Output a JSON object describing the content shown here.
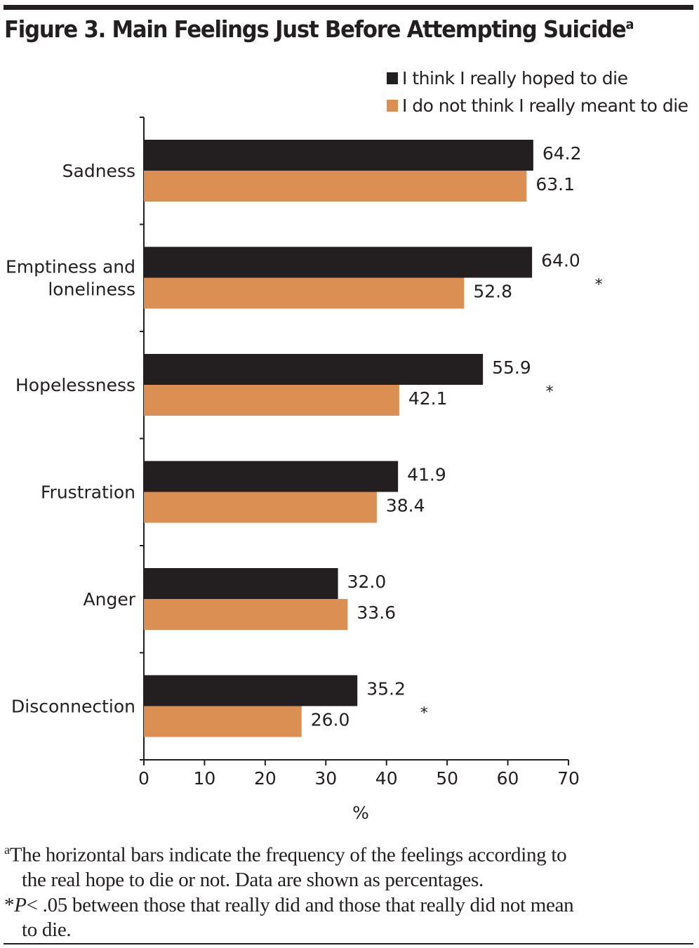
{
  "title": "Figure 3. Main Feelings Just Before Attempting Suicide",
  "title_superscript": "a",
  "chart_data": {
    "type": "bar",
    "orientation": "horizontal",
    "categories": [
      "Sadness",
      "Emptiness and loneliness",
      "Hopelessness",
      "Frustration",
      "Anger",
      "Disconnection"
    ],
    "category_lines": [
      [
        "Sadness"
      ],
      [
        "Emptiness and",
        "loneliness"
      ],
      [
        "Hopelessness"
      ],
      [
        "Frustration"
      ],
      [
        "Anger"
      ],
      [
        "Disconnection"
      ]
    ],
    "series": [
      {
        "name": "I think I really hoped to die",
        "color": "#231f20",
        "values": [
          64.2,
          64.0,
          55.9,
          41.9,
          32.0,
          35.2
        ]
      },
      {
        "name": "I do not think I really meant to die",
        "color": "#dc8f52",
        "values": [
          63.1,
          52.8,
          42.1,
          38.4,
          33.6,
          26.0
        ]
      }
    ],
    "significant": [
      false,
      true,
      true,
      false,
      false,
      true
    ],
    "significance_marker": "*",
    "xlabel": "%",
    "xlim": [
      0,
      70
    ],
    "xticks": [
      0,
      10,
      20,
      30,
      40,
      50,
      60,
      70
    ],
    "grid": false,
    "legend": "top-right"
  },
  "footnotes": {
    "a_marker": "a",
    "a_line1": "The horizontal bars indicate the frequency of the feelings according to",
    "a_line2": "the real hope to die or not. Data are shown as percentages.",
    "p_marker": "*",
    "p_italic": "P",
    "p_line1": "< .05 between those that really did and those that really did not mean",
    "p_line2": "to die."
  }
}
